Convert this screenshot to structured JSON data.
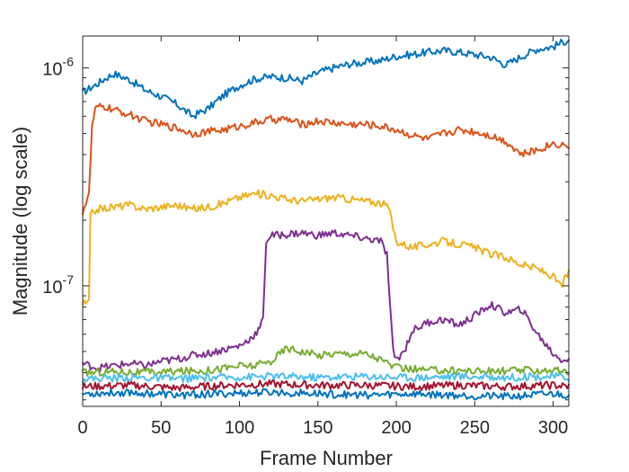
{
  "chart_data": {
    "type": "line",
    "title": "",
    "xlabel": "Frame Number",
    "ylabel": "Magnitude (log scale)",
    "xlim": [
      0,
      310
    ],
    "ylim": [
      2.8e-08,
      1.4e-06
    ],
    "y_scale": "log",
    "x_ticks": [
      0,
      50,
      100,
      150,
      200,
      250,
      300
    ],
    "x_tick_labels": [
      "0",
      "50",
      "100",
      "150",
      "200",
      "250",
      "300"
    ],
    "y_major_ticks": [
      1e-07,
      1e-06
    ],
    "y_tick_labels": [
      {
        "base": "10",
        "exp": "-7"
      },
      {
        "base": "10",
        "exp": "-6"
      }
    ],
    "grid": false,
    "legend": "none",
    "series": [
      {
        "color": "#0072BD",
        "x": [
          0,
          5,
          10,
          15,
          20,
          30,
          40,
          50,
          60,
          70,
          80,
          90,
          100,
          110,
          120,
          130,
          140,
          150,
          160,
          170,
          180,
          190,
          200,
          210,
          220,
          230,
          240,
          250,
          260,
          270,
          280,
          290,
          300,
          310
        ],
        "y": [
          7.7e-07,
          8.1e-07,
          8.5e-07,
          9e-07,
          9.4e-07,
          8.8e-07,
          7.9e-07,
          7.4e-07,
          6.8e-07,
          6e-07,
          6.5e-07,
          7.5e-07,
          8.3e-07,
          8.9e-07,
          9.1e-07,
          9e-07,
          8.7e-07,
          9.5e-07,
          1e-06,
          1.04e-06,
          1.06e-06,
          1.08e-06,
          1.13e-06,
          1.15e-06,
          1.18e-06,
          1.2e-06,
          1.18e-06,
          1.15e-06,
          1.12e-06,
          1.03e-06,
          1.13e-06,
          1.22e-06,
          1.25e-06,
          1.35e-06
        ]
      },
      {
        "color": "#D95319",
        "x": [
          0,
          2,
          4,
          6,
          8,
          10,
          15,
          20,
          30,
          40,
          50,
          60,
          70,
          80,
          90,
          100,
          110,
          120,
          130,
          140,
          150,
          160,
          170,
          180,
          190,
          200,
          210,
          220,
          230,
          240,
          250,
          260,
          270,
          280,
          290,
          300,
          310
        ],
        "y": [
          2.2e-07,
          2.4e-07,
          2.6e-07,
          5.4e-07,
          6.4e-07,
          6.6e-07,
          6.6e-07,
          6.4e-07,
          6.1e-07,
          5.7e-07,
          5.5e-07,
          5.3e-07,
          5e-07,
          5.1e-07,
          5.2e-07,
          5.4e-07,
          5.6e-07,
          5.8e-07,
          5.8e-07,
          5.5e-07,
          5.7e-07,
          5.6e-07,
          5.5e-07,
          5.5e-07,
          5.4e-07,
          5.2e-07,
          4.9e-07,
          4.7e-07,
          5e-07,
          5.2e-07,
          5.1e-07,
          4.9e-07,
          4.6e-07,
          4e-07,
          4.2e-07,
          4.5e-07,
          4.4e-07
        ]
      },
      {
        "color": "#EDB120",
        "x": [
          0,
          2,
          4,
          5,
          7,
          10,
          20,
          30,
          40,
          50,
          60,
          70,
          80,
          90,
          100,
          110,
          120,
          130,
          140,
          150,
          160,
          170,
          180,
          190,
          195,
          200,
          205,
          210,
          220,
          230,
          240,
          250,
          260,
          270,
          280,
          290,
          300,
          305,
          310
        ],
        "y": [
          8.3e-08,
          8.3e-08,
          8.4e-08,
          2.1e-07,
          2.2e-07,
          2.25e-07,
          2.3e-07,
          2.35e-07,
          2.25e-07,
          2.3e-07,
          2.35e-07,
          2.25e-07,
          2.3e-07,
          2.4e-07,
          2.55e-07,
          2.65e-07,
          2.6e-07,
          2.5e-07,
          2.45e-07,
          2.5e-07,
          2.55e-07,
          2.5e-07,
          2.45e-07,
          2.4e-07,
          2.3e-07,
          1.6e-07,
          1.55e-07,
          1.5e-07,
          1.55e-07,
          1.6e-07,
          1.55e-07,
          1.5e-07,
          1.4e-07,
          1.35e-07,
          1.25e-07,
          1.2e-07,
          1.1e-07,
          1e-07,
          1.15e-07
        ]
      },
      {
        "color": "#7E2F8E",
        "x": [
          0,
          10,
          20,
          30,
          40,
          50,
          60,
          70,
          80,
          90,
          100,
          105,
          110,
          113,
          115,
          117,
          120,
          130,
          140,
          150,
          160,
          170,
          180,
          190,
          194,
          196,
          198,
          200,
          205,
          210,
          220,
          230,
          240,
          250,
          260,
          270,
          280,
          290,
          300,
          305,
          310
        ],
        "y": [
          4.4e-08,
          4.2e-08,
          4.3e-08,
          4.4e-08,
          4.3e-08,
          4.5e-08,
          4.6e-08,
          4.8e-08,
          4.9e-08,
          5.1e-08,
          5.3e-08,
          5.6e-08,
          6e-08,
          6.4e-08,
          7e-08,
          1.6e-07,
          1.7e-07,
          1.72e-07,
          1.75e-07,
          1.7e-07,
          1.75e-07,
          1.7e-07,
          1.65e-07,
          1.6e-07,
          1.4e-07,
          8e-08,
          5e-08,
          4.6e-08,
          5e-08,
          6.2e-08,
          6.8e-08,
          7e-08,
          6.6e-08,
          7.3e-08,
          8.2e-08,
          7.5e-08,
          7.8e-08,
          6e-08,
          4.9e-08,
          4.6e-08,
          4.6e-08
        ]
      },
      {
        "color": "#77AC30",
        "x": [
          0,
          20,
          40,
          60,
          80,
          100,
          110,
          120,
          130,
          140,
          150,
          160,
          170,
          180,
          190,
          200,
          220,
          240,
          260,
          280,
          300,
          310
        ],
        "y": [
          4e-08,
          4.05e-08,
          4e-08,
          4.05e-08,
          4.1e-08,
          4.3e-08,
          4.3e-08,
          4.5e-08,
          5.2e-08,
          5e-08,
          4.8e-08,
          4.9e-08,
          4.9e-08,
          4.9e-08,
          4.6e-08,
          4.2e-08,
          4.1e-08,
          4.1e-08,
          4.05e-08,
          4.1e-08,
          4.1e-08,
          4e-08
        ]
      },
      {
        "color": "#4DBEEE",
        "x": [
          0,
          30,
          60,
          90,
          120,
          150,
          180,
          210,
          240,
          270,
          300,
          310
        ],
        "y": [
          3.75e-08,
          3.8e-08,
          3.75e-08,
          3.8e-08,
          3.85e-08,
          3.8e-08,
          3.85e-08,
          3.8e-08,
          3.85e-08,
          3.8e-08,
          3.85e-08,
          3.8e-08
        ]
      },
      {
        "color": "#A2142F",
        "x": [
          0,
          30,
          60,
          90,
          120,
          150,
          180,
          210,
          240,
          270,
          300,
          310
        ],
        "y": [
          3.45e-08,
          3.5e-08,
          3.4e-08,
          3.5e-08,
          3.55e-08,
          3.5e-08,
          3.5e-08,
          3.45e-08,
          3.5e-08,
          3.45e-08,
          3.5e-08,
          3.45e-08
        ]
      },
      {
        "color": "#0072BD",
        "x": [
          0,
          30,
          60,
          90,
          120,
          150,
          180,
          210,
          240,
          270,
          300,
          310
        ],
        "y": [
          3.2e-08,
          3.25e-08,
          3.15e-08,
          3.2e-08,
          3.25e-08,
          3.2e-08,
          3.15e-08,
          3.2e-08,
          3.15e-08,
          3.1e-08,
          3.2e-08,
          3.15e-08
        ]
      }
    ]
  }
}
